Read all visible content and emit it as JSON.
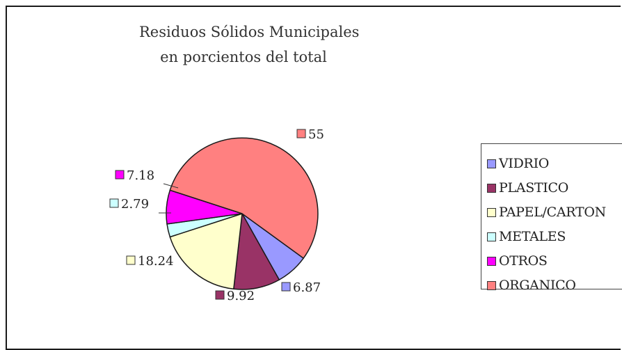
{
  "chart_data": {
    "type": "pie",
    "title": "Residuos Sólidos Municipales",
    "subtitle": "en porcientos del total",
    "legend_position": "right",
    "slices": [
      {
        "name": "VIDRIO",
        "value": 6.87,
        "label": "6.87",
        "color": "#9999ff"
      },
      {
        "name": "PLASTICO",
        "value": 9.92,
        "label": "9.92",
        "color": "#993366"
      },
      {
        "name": "PAPEL/CARTON",
        "value": 18.24,
        "label": "18.24",
        "color": "#ffffcc"
      },
      {
        "name": "METALES",
        "value": 2.79,
        "label": "2.79",
        "color": "#ccffff"
      },
      {
        "name": "OTROS",
        "value": 7.18,
        "label": "7.18",
        "color": "#ff00ff"
      },
      {
        "name": "ORGANICO",
        "value": 55,
        "label": "55",
        "color": "#ff8080"
      }
    ]
  }
}
